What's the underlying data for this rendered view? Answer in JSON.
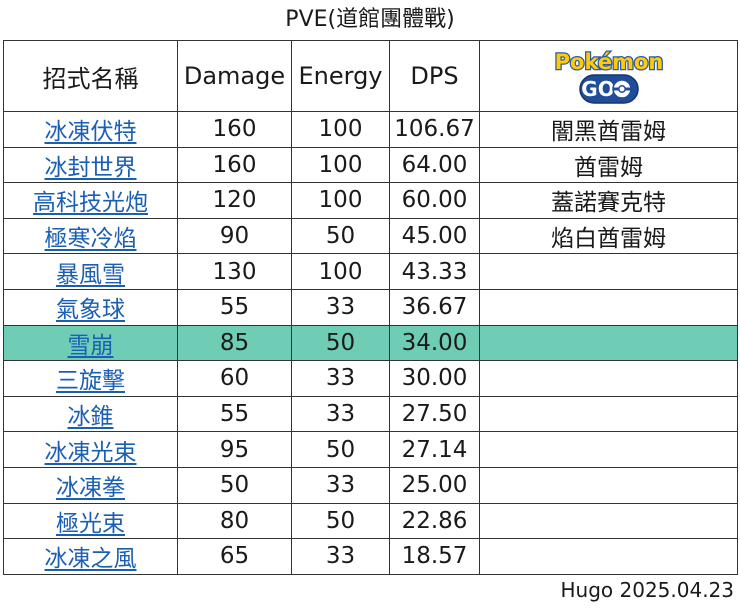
{
  "title": "PVE(道館團體戰)",
  "headers": {
    "name": "招式名稱",
    "damage": "Damage",
    "energy": "Energy",
    "dps": "DPS",
    "logo": {
      "icon": "pokemon-go-logo",
      "text_top": "Pokémon",
      "text_bottom": "GO"
    }
  },
  "highlight_color": "#6fcdb5",
  "rows": [
    {
      "name": "冰凍伏特",
      "damage": "160",
      "energy": "100",
      "dps": "106.67",
      "pokemon": "闇黑酋雷姆",
      "highlight": false
    },
    {
      "name": "冰封世界",
      "damage": "160",
      "energy": "100",
      "dps": "64.00",
      "pokemon": "酋雷姆",
      "highlight": false
    },
    {
      "name": "高科技光炮",
      "damage": "120",
      "energy": "100",
      "dps": "60.00",
      "pokemon": "蓋諾賽克特",
      "highlight": false
    },
    {
      "name": "極寒冷焰",
      "damage": "90",
      "energy": "50",
      "dps": "45.00",
      "pokemon": "焰白酋雷姆",
      "highlight": false
    },
    {
      "name": "暴風雪",
      "damage": "130",
      "energy": "100",
      "dps": "43.33",
      "pokemon": "",
      "highlight": false
    },
    {
      "name": "氣象球",
      "damage": "55",
      "energy": "33",
      "dps": "36.67",
      "pokemon": "",
      "highlight": false
    },
    {
      "name": "雪崩",
      "damage": "85",
      "energy": "50",
      "dps": "34.00",
      "pokemon": "",
      "highlight": true
    },
    {
      "name": "三旋擊",
      "damage": "60",
      "energy": "33",
      "dps": "30.00",
      "pokemon": "",
      "highlight": false
    },
    {
      "name": "冰錐",
      "damage": "55",
      "energy": "33",
      "dps": "27.50",
      "pokemon": "",
      "highlight": false
    },
    {
      "name": "冰凍光束",
      "damage": "95",
      "energy": "50",
      "dps": "27.14",
      "pokemon": "",
      "highlight": false
    },
    {
      "name": "冰凍拳",
      "damage": "50",
      "energy": "33",
      "dps": "25.00",
      "pokemon": "",
      "highlight": false
    },
    {
      "name": "極光束",
      "damage": "80",
      "energy": "50",
      "dps": "22.86",
      "pokemon": "",
      "highlight": false
    },
    {
      "name": "冰凍之風",
      "damage": "65",
      "energy": "33",
      "dps": "18.57",
      "pokemon": "",
      "highlight": false
    }
  ],
  "footer": "Hugo 2025.04.23"
}
